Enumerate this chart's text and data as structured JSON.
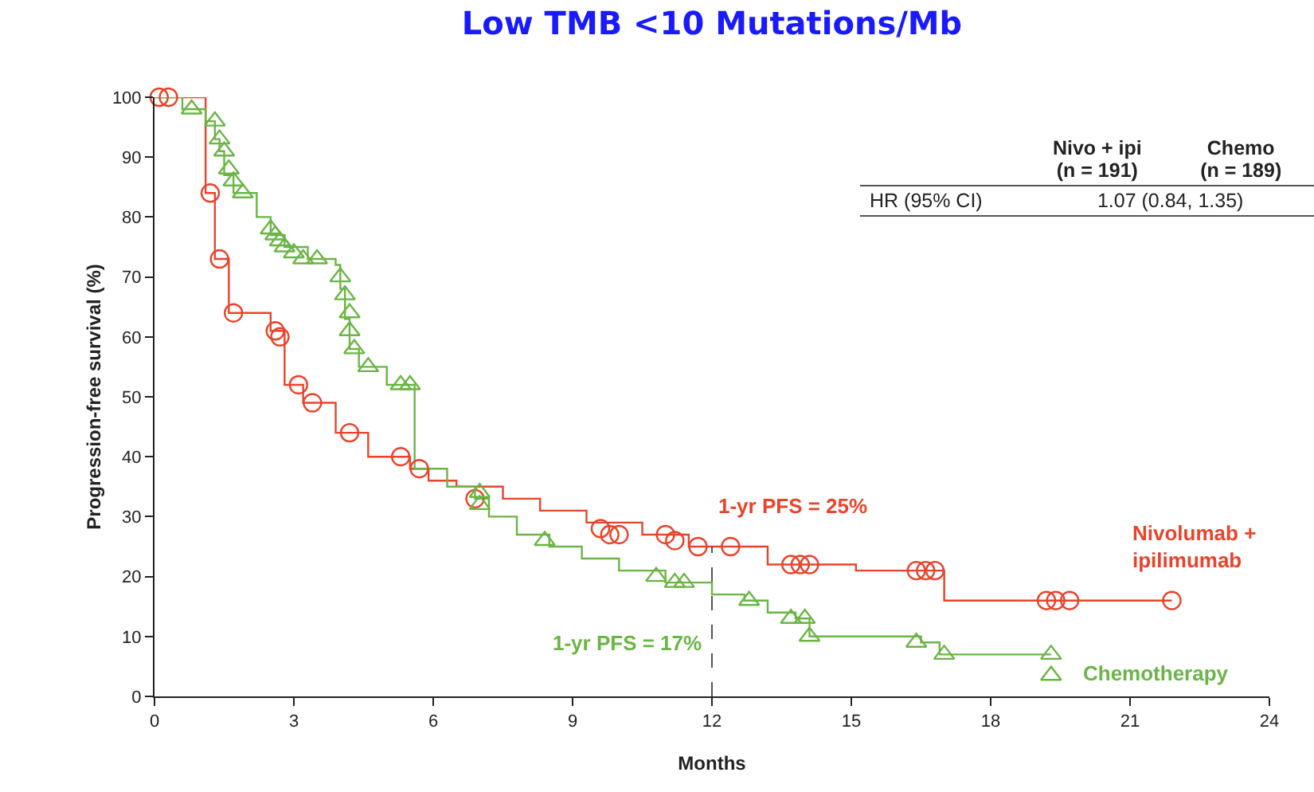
{
  "chart_data": {
    "type": "step",
    "title": "Low TMB <10 Mutations/Mb",
    "xlabel": "Months",
    "ylabel": "Progression-free survival (%)",
    "xlim": [
      0,
      24
    ],
    "xticks": [
      0,
      3,
      6,
      9,
      12,
      15,
      18,
      21,
      24
    ],
    "ylim": [
      0,
      100
    ],
    "yticks": [
      0,
      10,
      20,
      30,
      40,
      50,
      60,
      70,
      80,
      90,
      100
    ],
    "grid": false,
    "legend": false,
    "line_style": "solid",
    "series": [
      {
        "name": "Nivolumab + ipilimumab",
        "color": "#e8442c",
        "x": [
          0,
          1.1,
          1.3,
          1.6,
          2.5,
          2.8,
          3.2,
          3.9,
          4.6,
          5.5,
          5.9,
          6.5,
          7.5,
          8.3,
          9.3,
          10.5,
          11.5,
          13.2,
          15.1,
          17.0,
          21.9
        ],
        "values": [
          100,
          84,
          73,
          64,
          61,
          52,
          49,
          44,
          40,
          38,
          36,
          35,
          33,
          31,
          29,
          27,
          25,
          22,
          21,
          16,
          16
        ]
      },
      {
        "name": "Chemotherapy",
        "color": "#6ab545",
        "x": [
          0,
          0.6,
          1.1,
          1.3,
          1.4,
          1.5,
          1.7,
          2.2,
          2.5,
          2.8,
          3.3,
          3.9,
          4.0,
          4.1,
          4.2,
          4.4,
          5.0,
          5.6,
          6.3,
          6.9,
          7.2,
          7.8,
          8.5,
          9.2,
          10.0,
          11.0,
          12.0,
          12.7,
          13.2,
          13.8,
          14.1,
          16.5,
          16.9,
          19.3
        ],
        "values": [
          100,
          98,
          96,
          93,
          91,
          87,
          84,
          80,
          77,
          75,
          73,
          72,
          68,
          63,
          58,
          55,
          52,
          38,
          35,
          33,
          30,
          27,
          25,
          23,
          21,
          19,
          17,
          16,
          14,
          13,
          10,
          9,
          7,
          7
        ]
      },
      {
        "color": "#e8442c",
        "type": "scatter",
        "marker": "circle",
        "x": [
          0.1,
          0.3,
          1.2,
          1.4,
          1.7,
          2.6,
          2.7,
          3.1,
          3.4,
          4.2,
          5.3,
          5.7,
          6.9,
          9.6,
          9.8,
          10.0,
          11.0,
          11.2,
          11.7,
          12.4,
          13.7,
          13.9,
          14.1,
          16.4,
          16.6,
          16.8,
          19.2,
          19.4,
          19.7,
          21.9
        ],
        "values": [
          100,
          100,
          84,
          73,
          64,
          61,
          60,
          52,
          49,
          44,
          40,
          38,
          33,
          28,
          27,
          27,
          27,
          26,
          25,
          25,
          22,
          22,
          22,
          21,
          21,
          21,
          16,
          16,
          16,
          16
        ]
      },
      {
        "color": "#6ab545",
        "type": "scatter",
        "marker": "triangle",
        "x": [
          0.8,
          1.3,
          1.4,
          1.5,
          1.6,
          1.7,
          1.9,
          2.5,
          2.6,
          2.7,
          2.8,
          3.0,
          3.2,
          3.5,
          4.0,
          4.1,
          4.2,
          4.2,
          4.3,
          4.6,
          5.3,
          5.5,
          7.0,
          7.0,
          8.4,
          10.8,
          11.2,
          11.4,
          12.8,
          13.7,
          14.0,
          14.1,
          16.4,
          17.0,
          19.3,
          19.3
        ],
        "values": [
          98,
          96,
          93,
          91,
          88,
          86,
          84,
          78,
          77,
          76,
          75,
          74,
          73,
          73,
          70,
          67,
          64,
          61,
          58,
          55,
          52,
          52,
          34,
          32,
          26,
          20,
          19,
          19,
          16,
          13,
          13,
          10,
          9,
          7,
          7,
          3.5
        ]
      }
    ],
    "ref_lines": [
      {
        "axis": "x",
        "value": 12,
        "line_style": "dashed",
        "color": "#555555"
      }
    ],
    "annotations": [
      {
        "text": "1-yr PFS = 25%",
        "x": 12,
        "y": 25
      },
      {
        "text": "1-yr PFS = 17%",
        "x": 12,
        "y": 17
      },
      "Nivo + ipi (n = 191)",
      "Chemo (n = 189)",
      "HR (95% CI)",
      "1.07 (0.84, 1.35)"
    ]
  }
}
